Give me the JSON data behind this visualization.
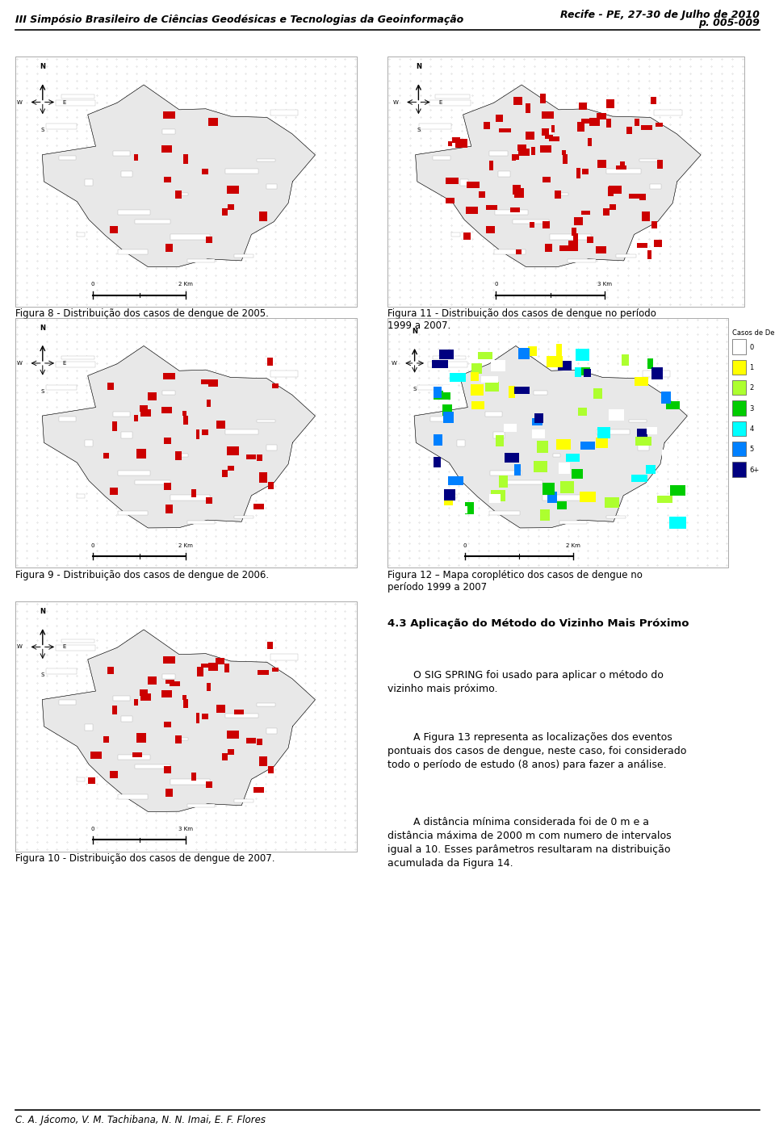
{
  "header_left": "III Simpósio Brasileiro de Ciências Geodésicas e Tecnologias da Geoinformação",
  "header_right_line1": "Recife - PE, 27-30 de Julho de 2010",
  "header_right_line2": "p. 005-009",
  "footer": "C. A. Jácomo, V. M. Tachibana, N. N. Imai, E. F. Flores",
  "fig8_caption": "Figura 8 - Distribuição dos casos de dengue de 2005.",
  "fig9_caption": "Figura 9 - Distribuição dos casos de dengue de 2006.",
  "fig10_caption": "Figura 10 - Distribuição dos casos de dengue de 2007.",
  "fig11_caption": "Figura 11 - Distribuição dos casos de dengue no período\n1999 a 2007.",
  "fig12_caption": "Figura 12 – Mapa coroplético dos casos de dengue no\nperíodo 1999 a 2007",
  "section_title": "4.3 Aplicação do Método do Vizinho Mais Próximo",
  "para1": "        O SIG SPRING foi usado para aplicar o método do\nvizinho mais próximo.",
  "para2": "        A Figura 13 representa as localizações dos eventos\npontuais dos casos de dengue, neste caso, foi considerado\ntodo o período de estudo (8 anos) para fazer a análise.",
  "para3": "        A distância mínima considerada foi de 0 m e a\ndistância máxima de 2000 m com numero de intervalos\nigual a 10. Esses parâmetros resultaram na distribuição\nacumulada da Figura 14.",
  "legend_title": "Casos de Dengue",
  "legend_items": [
    "0",
    "1",
    "2",
    "3",
    "4",
    "5",
    "6+"
  ],
  "legend_colors": [
    "#ffffff",
    "#ffff00",
    "#adff2f",
    "#00cc00",
    "#00ffff",
    "#0080ff",
    "#000080"
  ],
  "bg_color": "#ffffff",
  "text_color": "#000000",
  "header_line_color": "#000000",
  "map_bg": "#f0f0f0",
  "map_dotted_color": "#cccccc"
}
